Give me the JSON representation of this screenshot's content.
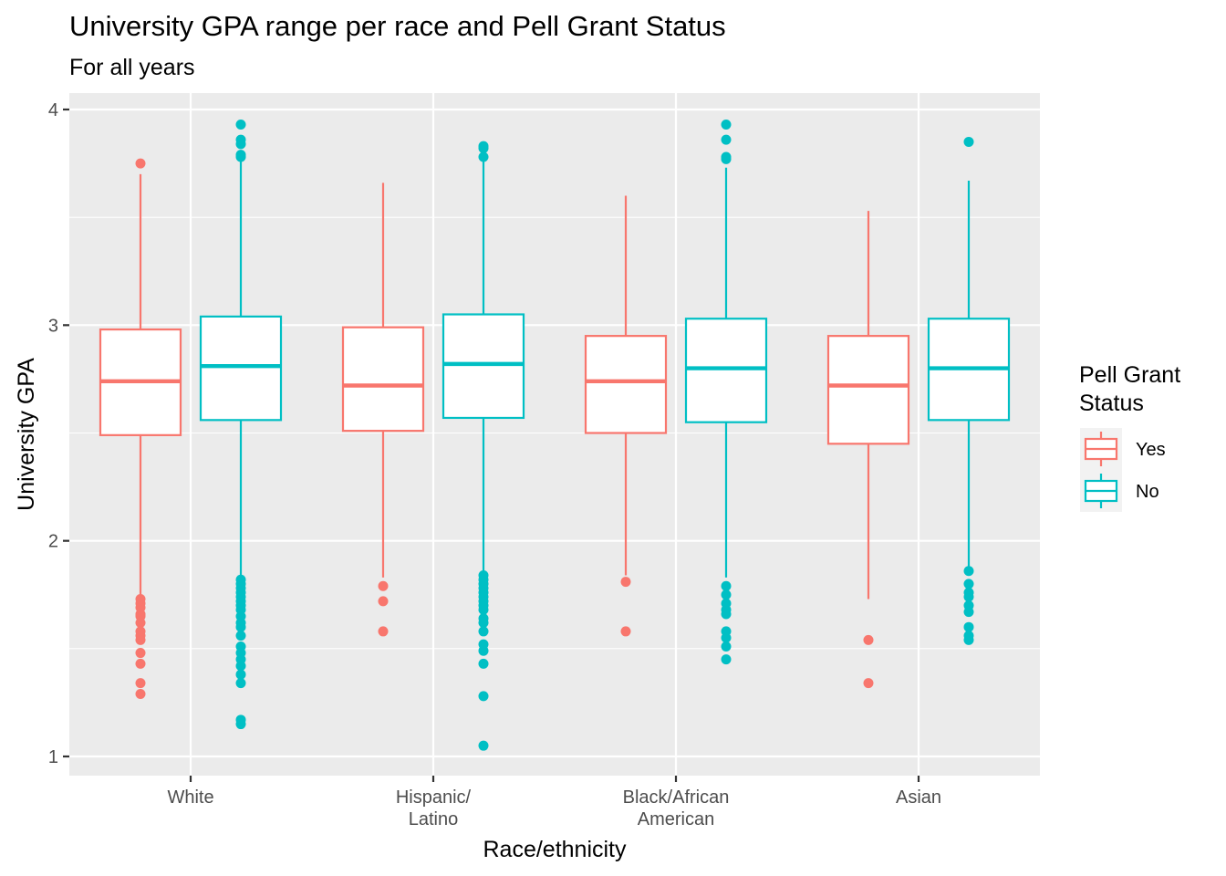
{
  "chart_data": {
    "type": "boxplot",
    "title": "University GPA range per race and Pell Grant Status",
    "subtitle": "For all years",
    "xlabel": "Race/ethnicity",
    "ylabel": "University GPA",
    "ylim": [
      0.95,
      4.06
    ],
    "yticks": [
      1,
      2,
      3,
      4
    ],
    "grid": true,
    "legend_position": "right",
    "legend_title": [
      "Pell Grant",
      "Status"
    ],
    "categories": [
      [
        "White"
      ],
      [
        "Hispanic/",
        "Latino"
      ],
      [
        "Black/African",
        "American"
      ],
      [
        "Asian"
      ]
    ],
    "series": [
      {
        "name": "Yes",
        "color": "#F8766D",
        "boxes": [
          {
            "min": 1.74,
            "q1": 2.49,
            "median": 2.74,
            "q3": 2.98,
            "max": 3.7,
            "outliers": [
              3.75,
              1.73,
              1.71,
              1.69,
              1.66,
              1.65,
              1.62,
              1.58,
              1.56,
              1.54,
              1.48,
              1.43,
              1.34,
              1.29
            ]
          },
          {
            "min": 1.83,
            "q1": 2.51,
            "median": 2.72,
            "q3": 2.99,
            "max": 3.66,
            "outliers": [
              1.79,
              1.72,
              1.58
            ]
          },
          {
            "min": 1.84,
            "q1": 2.5,
            "median": 2.74,
            "q3": 2.95,
            "max": 3.6,
            "outliers": [
              1.81,
              1.58
            ]
          },
          {
            "min": 1.73,
            "q1": 2.45,
            "median": 2.72,
            "q3": 2.95,
            "max": 3.53,
            "outliers": [
              1.54,
              1.34
            ]
          }
        ]
      },
      {
        "name": "No",
        "color": "#00BFC4",
        "boxes": [
          {
            "min": 1.83,
            "q1": 2.56,
            "median": 2.81,
            "q3": 3.04,
            "max": 3.77,
            "outliers": [
              3.93,
              3.86,
              3.84,
              3.79,
              3.78,
              1.82,
              1.8,
              1.78,
              1.76,
              1.74,
              1.72,
              1.7,
              1.68,
              1.65,
              1.62,
              1.6,
              1.56,
              1.51,
              1.48,
              1.45,
              1.42,
              1.38,
              1.34,
              1.17,
              1.15
            ]
          },
          {
            "min": 1.85,
            "q1": 2.57,
            "median": 2.82,
            "q3": 3.05,
            "max": 3.76,
            "outliers": [
              3.83,
              3.82,
              3.78,
              1.84,
              1.82,
              1.8,
              1.78,
              1.76,
              1.74,
              1.72,
              1.7,
              1.68,
              1.64,
              1.62,
              1.58,
              1.52,
              1.49,
              1.43,
              1.28,
              1.05
            ]
          },
          {
            "min": 1.83,
            "q1": 2.55,
            "median": 2.8,
            "q3": 3.03,
            "max": 3.73,
            "outliers": [
              3.93,
              3.86,
              3.78,
              3.77,
              1.79,
              1.75,
              1.71,
              1.68,
              1.66,
              1.58,
              1.55,
              1.51,
              1.45
            ]
          },
          {
            "min": 1.88,
            "q1": 2.56,
            "median": 2.8,
            "q3": 3.03,
            "max": 3.67,
            "outliers": [
              3.85,
              1.86,
              1.8,
              1.76,
              1.74,
              1.7,
              1.67,
              1.6,
              1.56,
              1.54
            ]
          }
        ]
      }
    ]
  }
}
